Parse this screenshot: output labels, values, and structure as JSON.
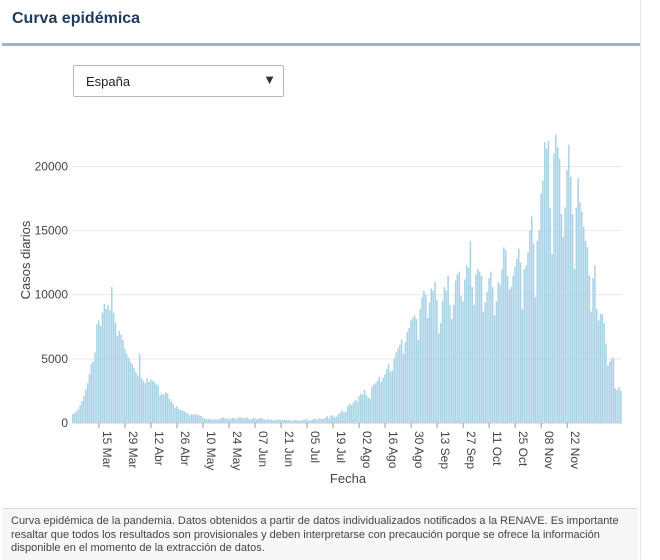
{
  "header": {
    "title": "Curva epidémica"
  },
  "region_select": {
    "value": "España",
    "arrow_icon": "caret-down-icon"
  },
  "chart_data": {
    "type": "bar",
    "title": "",
    "xlabel": "Fecha",
    "ylabel": "Casos diarios",
    "ylim": [
      0,
      23000
    ],
    "yticks": [
      0,
      5000,
      10000,
      15000,
      20000
    ],
    "ytick_labels": [
      "0",
      "5000",
      "10000",
      "15000",
      "20000"
    ],
    "xtick_labels": [
      "15 Mar",
      "29 Mar",
      "12 Abr",
      "26 Abr",
      "10 May",
      "24 May",
      "07 Jun",
      "21 Jun",
      "05 Jul",
      "19 Jul",
      "02 Ago",
      "16 Ago",
      "30 Ago",
      "13 Sep",
      "27 Sep",
      "11 Oct",
      "25 Oct",
      "08 Nov",
      "22 Nov"
    ],
    "bar_color": "#a8d3e7",
    "series": [
      {
        "name": "Casos diarios",
        "start_date": "2020-03-01",
        "values": [
          700,
          800,
          900,
          1100,
          1400,
          1700,
          2100,
          2600,
          3100,
          3800,
          4600,
          4800,
          5500,
          7700,
          8000,
          7600,
          8600,
          9300,
          8900,
          9200,
          8800,
          10600,
          8600,
          7800,
          6800,
          7200,
          6900,
          6500,
          5800,
          5400,
          5100,
          4800,
          4600,
          4300,
          4000,
          3700,
          5400,
          3500,
          3300,
          3100,
          3500,
          3200,
          3400,
          3300,
          3200,
          3000,
          2900,
          2200,
          2300,
          2200,
          2400,
          2300,
          1900,
          1700,
          1500,
          1200,
          1300,
          1100,
          1000,
          1000,
          900,
          800,
          750,
          600,
          700,
          650,
          700,
          620,
          600,
          550,
          400,
          350,
          320,
          300,
          300,
          280,
          250,
          300,
          270,
          280,
          400,
          420,
          380,
          350,
          300,
          350,
          400,
          380,
          300,
          420,
          450,
          430,
          360,
          380,
          440,
          300,
          280,
          400,
          350,
          300,
          320,
          380,
          370,
          280,
          250,
          300,
          230,
          280,
          200,
          220,
          260,
          280,
          250,
          220,
          260,
          240,
          220,
          200,
          180,
          220,
          240,
          200,
          190,
          180,
          250,
          300,
          270,
          200,
          220,
          260,
          350,
          300,
          280,
          380,
          300,
          320,
          420,
          520,
          350,
          600,
          580,
          460,
          500,
          700,
          800,
          1000,
          820,
          900,
          1300,
          1500,
          1400,
          1600,
          1800,
          1700,
          2100,
          2300,
          2200,
          2600,
          2200,
          2000,
          1900,
          2800,
          3000,
          3100,
          3300,
          3600,
          3200,
          3500,
          3800,
          4200,
          4600,
          4000,
          4100,
          5000,
          5500,
          5800,
          6100,
          6500,
          5400,
          6300,
          7100,
          7400,
          8000,
          8200,
          8400,
          8100,
          6500,
          8900,
          9800,
          10300,
          10000,
          8200,
          9400,
          10500,
          10300,
          11000,
          9600,
          7000,
          7800,
          9500,
          10600,
          10300,
          11500,
          9200,
          8100,
          9200,
          11100,
          11600,
          11800,
          9900,
          9500,
          11200,
          12300,
          12100,
          14200,
          10600,
          9200,
          11600,
          12000,
          11800,
          11500,
          8700,
          9400,
          10200,
          11300,
          11800,
          10600,
          8400,
          9500,
          11000,
          10800,
          12000,
          13700,
          13500,
          11500,
          10400,
          10600,
          11500,
          12200,
          12800,
          13600,
          12500,
          8900,
          12000,
          12300,
          13300,
          15000,
          16100,
          14000,
          9800,
          14200,
          15000,
          17900,
          18900,
          21900,
          21400,
          22000,
          16800,
          13200,
          21000,
          22500,
          21500,
          20600,
          16300,
          14500,
          16800,
          19700,
          21700,
          19200,
          16300,
          12000,
          16800,
          19100,
          17200,
          16500,
          15300,
          14200,
          13700,
          11500,
          8700,
          11300,
          12300,
          8900,
          8000,
          8500,
          8500,
          7800,
          6200,
          4500,
          4800,
          5000,
          5100,
          2700,
          2600,
          2800,
          2500
        ]
      }
    ]
  },
  "footer": {
    "note": "Curva epidémica de la pandemia. Datos obtenidos a partir de datos individualizados notificados a la RENAVE. Es importante resaltar que todos los resultados son provisionales y deben interpretarse con precaución porque se ofrece la información disponible en el momento de la extracción de datos."
  }
}
